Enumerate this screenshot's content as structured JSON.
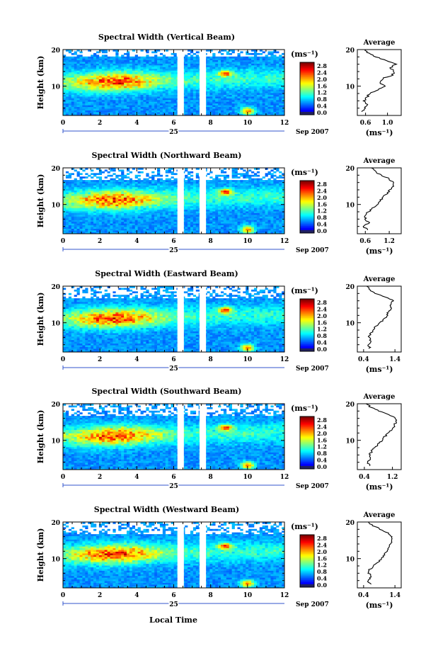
{
  "figure": {
    "date_label": "Sep 2007",
    "day_label": "25",
    "xlabel": "Local Time",
    "avg_title": "Average",
    "unit_label": "(ms⁻¹)",
    "ylabel": "Height (km)"
  },
  "chart_data": [
    {
      "type": "heatmap",
      "title": "Spectral Width (Vertical Beam)",
      "xlabel": "Local Time",
      "ylabel": "Height (km)",
      "xlim": [
        0,
        12
      ],
      "ylim": [
        2,
        20
      ],
      "xticks": [
        0,
        2,
        4,
        6,
        8,
        10,
        12
      ],
      "yticks": [
        10,
        20
      ],
      "colorbar_ticks": [
        "0.0",
        "0.4",
        "0.8",
        "1.2",
        "1.6",
        "2.0",
        "2.4",
        "2.8"
      ],
      "colorbar_unit": "(ms⁻¹)",
      "gaps_hours": [
        [
          6.2,
          6.55
        ],
        [
          7.4,
          7.75
        ]
      ],
      "average_profile": {
        "title": "Average",
        "xlabel": "(ms⁻¹)",
        "xticks": [
          "0.6",
          "1.0"
        ],
        "xlim": [
          0.45,
          1.25
        ],
        "ylim": [
          2,
          20
        ],
        "yticks": [
          10,
          20
        ],
        "height_km": [
          3,
          4,
          5,
          6,
          7,
          8,
          9,
          10,
          11,
          12,
          13,
          14,
          15,
          16,
          17,
          18,
          19,
          20
        ],
        "value": [
          0.55,
          0.6,
          0.62,
          0.58,
          0.62,
          0.68,
          0.82,
          0.95,
          0.85,
          0.9,
          1.08,
          1.12,
          1.06,
          1.15,
          0.98,
          0.8,
          0.65,
          0.6
        ]
      }
    },
    {
      "type": "heatmap",
      "title": "Spectral Width (Northward Beam)",
      "xlabel": "Local Time",
      "ylabel": "Height (km)",
      "xlim": [
        0,
        12
      ],
      "ylim": [
        2,
        20
      ],
      "xticks": [
        0,
        2,
        4,
        6,
        8,
        10,
        12
      ],
      "yticks": [
        10,
        20
      ],
      "colorbar_ticks": [
        "0.0",
        "0.4",
        "0.8",
        "1.2",
        "1.6",
        "2.0",
        "2.4",
        "2.8"
      ],
      "colorbar_unit": "(ms⁻¹)",
      "gaps_hours": [
        [
          6.2,
          6.55
        ],
        [
          7.4,
          7.75
        ]
      ],
      "average_profile": {
        "title": "Average",
        "xlabel": "(ms⁻¹)",
        "xticks": [
          "0.6",
          "1.2"
        ],
        "xlim": [
          0.4,
          1.5
        ],
        "ylim": [
          2,
          20
        ],
        "yticks": [
          10,
          20
        ],
        "height_km": [
          3,
          4,
          5,
          6,
          7,
          8,
          9,
          10,
          11,
          12,
          13,
          14,
          15,
          16,
          17,
          18,
          19,
          20
        ],
        "value": [
          0.65,
          0.55,
          0.7,
          0.6,
          0.58,
          0.68,
          0.8,
          0.92,
          0.98,
          1.05,
          1.15,
          1.22,
          1.28,
          1.3,
          1.2,
          1.0,
          0.85,
          0.75
        ]
      }
    },
    {
      "type": "heatmap",
      "title": "Spectral Width (Eastward Beam)",
      "xlabel": "Local Time",
      "ylabel": "Height (km)",
      "xlim": [
        0,
        12
      ],
      "ylim": [
        2,
        20
      ],
      "xticks": [
        0,
        2,
        4,
        6,
        8,
        10,
        12
      ],
      "yticks": [
        10,
        20
      ],
      "colorbar_ticks": [
        "0.0",
        "0.4",
        "0.8",
        "1.2",
        "1.6",
        "2.0",
        "2.4",
        "2.8"
      ],
      "colorbar_unit": "(ms⁻¹)",
      "gaps_hours": [
        [
          6.2,
          6.55
        ],
        [
          7.4,
          7.75
        ]
      ],
      "average_profile": {
        "title": "Average",
        "xlabel": "(ms⁻¹)",
        "xticks": [
          "0.4",
          "1.4"
        ],
        "xlim": [
          0.2,
          1.6
        ],
        "ylim": [
          2,
          20
        ],
        "yticks": [
          10,
          20
        ],
        "height_km": [
          3,
          4,
          5,
          6,
          7,
          8,
          9,
          10,
          11,
          12,
          13,
          14,
          15,
          16,
          17,
          18,
          19,
          20
        ],
        "value": [
          0.6,
          0.55,
          0.65,
          0.58,
          0.62,
          0.7,
          0.8,
          0.95,
          1.05,
          1.15,
          1.2,
          1.3,
          1.25,
          1.35,
          1.1,
          0.8,
          0.6,
          0.5
        ]
      }
    },
    {
      "type": "heatmap",
      "title": "Spectral Width (Southward Beam)",
      "xlabel": "Local Time",
      "ylabel": "Height (km)",
      "xlim": [
        0,
        12
      ],
      "ylim": [
        2,
        20
      ],
      "xticks": [
        0,
        2,
        4,
        6,
        8,
        10,
        12
      ],
      "yticks": [
        10,
        20
      ],
      "colorbar_ticks": [
        "0.0",
        "0.4",
        "0.8",
        "1.2",
        "1.6",
        "2.0",
        "2.4",
        "2.8"
      ],
      "colorbar_unit": "(ms⁻¹)",
      "gaps_hours": [
        [
          6.2,
          6.55
        ],
        [
          7.4,
          7.75
        ]
      ],
      "average_profile": {
        "title": "Average",
        "xlabel": "(ms⁻¹)",
        "xticks": [
          "0.4",
          "1.2"
        ],
        "xlim": [
          0.2,
          1.45
        ],
        "ylim": [
          2,
          20
        ],
        "yticks": [
          10,
          20
        ],
        "height_km": [
          3,
          4,
          5,
          6,
          7,
          8,
          9,
          10,
          11,
          12,
          13,
          14,
          15,
          16,
          17,
          18,
          19,
          20
        ],
        "value": [
          0.55,
          0.5,
          0.6,
          0.55,
          0.6,
          0.7,
          0.78,
          0.9,
          0.98,
          1.1,
          1.2,
          1.25,
          1.3,
          1.28,
          1.1,
          0.8,
          0.6,
          0.45
        ]
      }
    },
    {
      "type": "heatmap",
      "title": "Spectral Width (Westward Beam)",
      "xlabel": "Local Time",
      "ylabel": "Height (km)",
      "xlim": [
        0,
        12
      ],
      "ylim": [
        2,
        20
      ],
      "xticks": [
        0,
        2,
        4,
        6,
        8,
        10,
        12
      ],
      "yticks": [
        10,
        20
      ],
      "colorbar_ticks": [
        "0.0",
        "0.4",
        "0.8",
        "1.2",
        "1.6",
        "2.0",
        "2.4",
        "2.8"
      ],
      "colorbar_unit": "(ms⁻¹)",
      "gaps_hours": [
        [
          6.2,
          6.55
        ],
        [
          7.4,
          7.75
        ]
      ],
      "average_profile": {
        "title": "Average",
        "xlabel": "(ms⁻¹)",
        "xticks": [
          "0.4",
          "1.4"
        ],
        "xlim": [
          0.2,
          1.6
        ],
        "ylim": [
          2,
          20
        ],
        "yticks": [
          10,
          20
        ],
        "height_km": [
          3,
          4,
          5,
          6,
          7,
          8,
          9,
          10,
          11,
          12,
          13,
          14,
          15,
          16,
          17,
          18,
          19,
          20
        ],
        "value": [
          0.6,
          0.55,
          0.62,
          0.58,
          0.6,
          0.72,
          0.85,
          0.98,
          1.05,
          1.15,
          1.22,
          1.25,
          1.3,
          1.32,
          1.2,
          0.95,
          0.7,
          0.55
        ]
      }
    }
  ]
}
